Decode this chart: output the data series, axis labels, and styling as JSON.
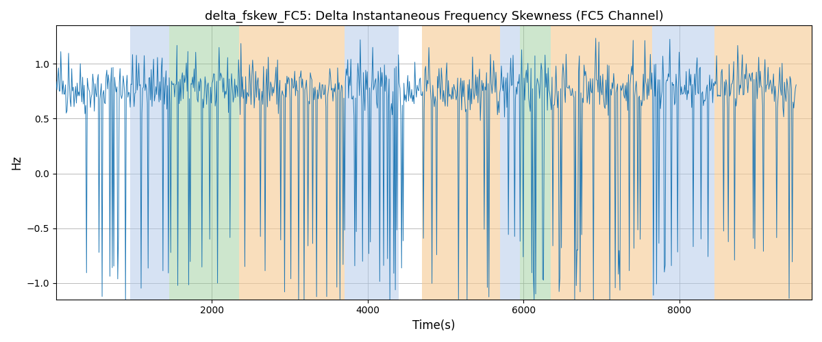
{
  "title": "delta_fskew_FC5: Delta Instantaneous Frequency Skewness (FC5 Channel)",
  "xlabel": "Time(s)",
  "ylabel": "Hz",
  "xlim": [
    0,
    9700
  ],
  "ylim": [
    -1.15,
    1.35
  ],
  "yticks": [
    -1.0,
    -0.5,
    0.0,
    0.5,
    1.0
  ],
  "xticks": [
    2000,
    4000,
    6000,
    8000
  ],
  "line_color": "#1f77b4",
  "line_width": 0.7,
  "background_color": "#ffffff",
  "grid_color": "#b0b0b0",
  "colored_bands": [
    {
      "xmin": 950,
      "xmax": 1450,
      "color": "#aec6e8",
      "alpha": 0.5
    },
    {
      "xmin": 1450,
      "xmax": 2350,
      "color": "#90c990",
      "alpha": 0.45
    },
    {
      "xmin": 2350,
      "xmax": 3700,
      "color": "#f5c890",
      "alpha": 0.6
    },
    {
      "xmin": 3700,
      "xmax": 4400,
      "color": "#aec6e8",
      "alpha": 0.5
    },
    {
      "xmin": 4400,
      "xmax": 4700,
      "color": "#ffffff",
      "alpha": 0.0
    },
    {
      "xmin": 4700,
      "xmax": 5700,
      "color": "#f5c890",
      "alpha": 0.6
    },
    {
      "xmin": 5700,
      "xmax": 5950,
      "color": "#aec6e8",
      "alpha": 0.5
    },
    {
      "xmin": 5950,
      "xmax": 6350,
      "color": "#90c990",
      "alpha": 0.45
    },
    {
      "xmin": 6350,
      "xmax": 7650,
      "color": "#f5c890",
      "alpha": 0.6
    },
    {
      "xmin": 7650,
      "xmax": 8450,
      "color": "#aec6e8",
      "alpha": 0.5
    },
    {
      "xmin": 8450,
      "xmax": 9700,
      "color": "#f5c890",
      "alpha": 0.6
    }
  ],
  "seed": 42,
  "n_points": 950
}
